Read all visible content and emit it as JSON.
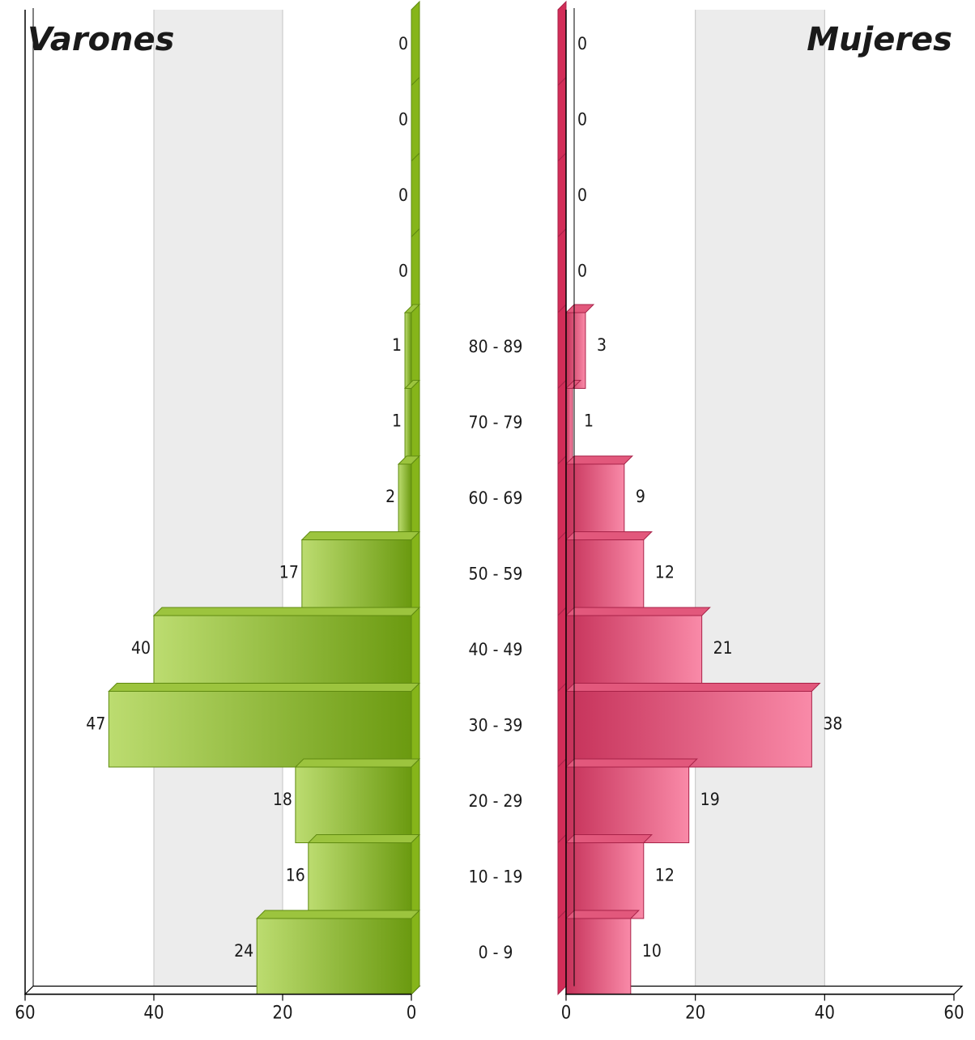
{
  "chart_data": [
    {
      "type": "bar",
      "title": "Varones",
      "orientation": "horizontal",
      "direction": "right-to-left",
      "categories": [
        "",
        "",
        "",
        "",
        "80 - 89",
        "70 - 79",
        "60 - 69",
        "50 - 59",
        "40 - 49",
        "30 - 39",
        "20 - 29",
        "10 - 19",
        "0 - 9"
      ],
      "values": [
        0,
        0,
        0,
        0,
        1,
        1,
        2,
        17,
        40,
        47,
        18,
        16,
        24
      ],
      "xlim": [
        0,
        60
      ],
      "xticks": [
        "60",
        "40",
        "20",
        "0"
      ],
      "grid": true,
      "colors": {
        "bar_dark": "#6b9a10",
        "bar_light": "#bcdc70",
        "bar_top": "#9cc43e",
        "bar_side": "#86b51a",
        "stroke": "#5f8a10"
      }
    },
    {
      "type": "bar",
      "title": "Mujeres",
      "orientation": "horizontal",
      "direction": "left-to-right",
      "categories": [
        "",
        "",
        "",
        "",
        "80 - 89",
        "70 - 79",
        "60 - 69",
        "50 - 59",
        "40 - 49",
        "30 - 39",
        "20 - 29",
        "10 - 19",
        "0 - 9"
      ],
      "values": [
        0,
        0,
        0,
        0,
        3,
        1,
        9,
        12,
        21,
        38,
        19,
        12,
        10
      ],
      "xlim": [
        0,
        60
      ],
      "xticks": [
        "0",
        "20",
        "40",
        "60"
      ],
      "grid": true,
      "colors": {
        "bar_dark": "#c6325a",
        "bar_light": "#f98aa8",
        "bar_top": "#e2587c",
        "bar_side": "#d22d58",
        "stroke": "#a82248"
      }
    }
  ]
}
